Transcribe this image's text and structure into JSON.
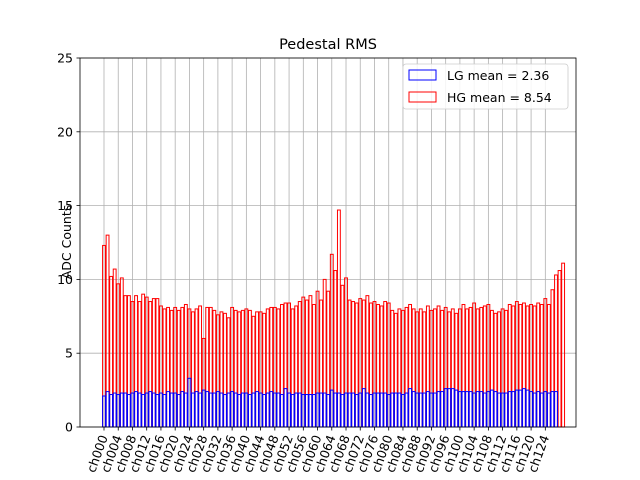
{
  "chart_data": {
    "type": "bar",
    "title": "Pedestal RMS",
    "xlabel": "",
    "ylabel": "ADC Counts",
    "ylim": [
      0,
      25
    ],
    "yticks": [
      0,
      5,
      10,
      15,
      20,
      25
    ],
    "grid": true,
    "legend_position": "top-right",
    "channel_count": 128,
    "tick_every": 4,
    "colors": {
      "LG": "#0000ff",
      "HG": "#ff0000"
    },
    "series": [
      {
        "name": "LG mean = 2.36",
        "key": "LG",
        "values": [
          2.1,
          2.4,
          2.2,
          2.3,
          2.2,
          2.3,
          2.3,
          2.2,
          2.3,
          2.4,
          2.3,
          2.2,
          2.3,
          2.4,
          2.3,
          2.2,
          2.3,
          2.2,
          2.4,
          2.3,
          2.3,
          2.2,
          2.4,
          2.3,
          3.3,
          2.3,
          2.4,
          2.3,
          2.5,
          2.4,
          2.3,
          2.3,
          2.4,
          2.3,
          2.2,
          2.3,
          2.4,
          2.3,
          2.2,
          2.3,
          2.3,
          2.2,
          2.3,
          2.4,
          2.3,
          2.2,
          2.3,
          2.4,
          2.3,
          2.3,
          2.2,
          2.6,
          2.3,
          2.2,
          2.3,
          2.3,
          2.2,
          2.2,
          2.2,
          2.2,
          2.3,
          2.3,
          2.3,
          2.2,
          2.5,
          2.3,
          2.3,
          2.2,
          2.3,
          2.3,
          2.3,
          2.2,
          2.3,
          2.6,
          2.3,
          2.2,
          2.3,
          2.3,
          2.3,
          2.3,
          2.2,
          2.3,
          2.3,
          2.3,
          2.2,
          2.3,
          2.6,
          2.4,
          2.3,
          2.3,
          2.3,
          2.4,
          2.3,
          2.3,
          2.4,
          2.4,
          2.6,
          2.6,
          2.6,
          2.5,
          2.4,
          2.4,
          2.4,
          2.4,
          2.3,
          2.4,
          2.4,
          2.3,
          2.4,
          2.5,
          2.4,
          2.3,
          2.3,
          2.3,
          2.4,
          2.4,
          2.5,
          2.5,
          2.6,
          2.5,
          2.4,
          2.3,
          2.4,
          2.3,
          2.4,
          2.3,
          2.4,
          2.4
        ]
      },
      {
        "name": "HG mean = 8.54",
        "key": "HG",
        "values": [
          12.3,
          13.0,
          10.2,
          10.7,
          9.7,
          10.1,
          8.9,
          8.9,
          8.5,
          8.9,
          8.5,
          9.0,
          8.8,
          8.5,
          8.7,
          8.7,
          8.2,
          8.0,
          8.1,
          7.9,
          8.1,
          7.9,
          8.1,
          8.3,
          8.0,
          7.8,
          8.0,
          8.2,
          6.0,
          8.1,
          8.1,
          7.9,
          7.6,
          7.8,
          7.7,
          7.4,
          8.1,
          7.9,
          7.8,
          7.9,
          8.0,
          7.9,
          7.5,
          7.8,
          7.8,
          7.7,
          8.0,
          8.1,
          8.1,
          8.0,
          8.3,
          8.4,
          8.4,
          8.0,
          8.2,
          8.5,
          8.8,
          8.6,
          8.9,
          8.3,
          9.2,
          8.6,
          10.0,
          9.2,
          11.7,
          10.6,
          14.7,
          9.6,
          10.1,
          8.6,
          8.5,
          8.4,
          8.7,
          8.6,
          8.9,
          8.4,
          8.5,
          8.3,
          8.2,
          8.5,
          8.4,
          7.9,
          7.7,
          8.0,
          7.9,
          8.1,
          8.3,
          8.0,
          7.8,
          8.0,
          7.8,
          8.2,
          7.9,
          8.0,
          8.2,
          7.9,
          8.1,
          7.8,
          8.0,
          7.7,
          8.0,
          8.3,
          8.0,
          8.1,
          8.4,
          8.0,
          8.1,
          8.2,
          8.3,
          7.9,
          7.7,
          7.8,
          8.0,
          7.9,
          8.3,
          8.2,
          8.5,
          8.3,
          8.4,
          8.2,
          8.3,
          8.2,
          8.4,
          8.3,
          8.7,
          8.3,
          9.3,
          10.3,
          10.6,
          11.1
        ]
      }
    ]
  }
}
